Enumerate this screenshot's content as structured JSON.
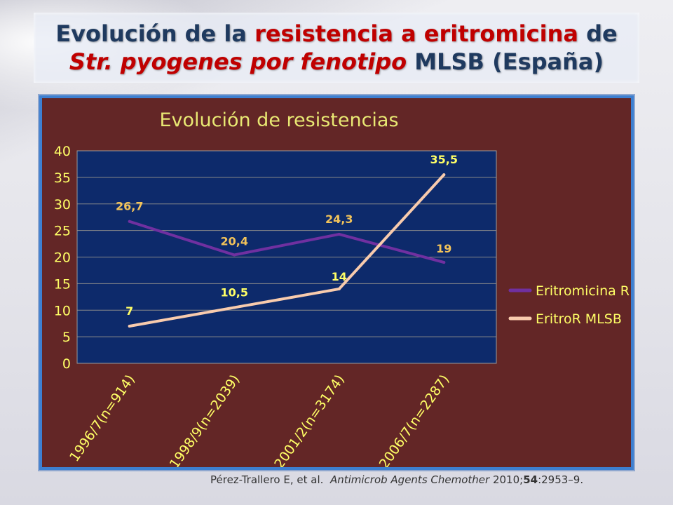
{
  "slide": {
    "title_parts": [
      {
        "text": "Evolución de la ",
        "style": ""
      },
      {
        "text": "resistencia a eritromicina",
        "style": "red"
      },
      {
        "text": " de",
        "style": ""
      }
    ],
    "title_parts2": [
      {
        "text": "Str. pyogenes por fenotipo",
        "style": "red it"
      },
      {
        "text": " MLSB (España)",
        "style": ""
      }
    ],
    "citation_parts": [
      {
        "text": "Pérez-Trallero E, et al.  ",
        "style": ""
      },
      {
        "text": "Antimicrob Agents Chemother",
        "style": "italic"
      },
      {
        "text": " 2010;",
        "style": ""
      },
      {
        "text": "54",
        "style": "bold"
      },
      {
        "text": ":2953–9.",
        "style": ""
      }
    ]
  },
  "chart_data": {
    "type": "line",
    "title": "Evolución de resistencias",
    "categories": [
      "1996/7(n=914)",
      "1998/9(n=2039)",
      "2001/2(n=3174)",
      "2006/7(n=2287)"
    ],
    "ylim": [
      0,
      40
    ],
    "yticks": [
      0,
      5,
      10,
      15,
      20,
      25,
      30,
      35,
      40
    ],
    "series": [
      {
        "name": "Eritromicina R",
        "values": [
          26.7,
          20.4,
          24.3,
          19
        ],
        "labels": [
          "26,7",
          "20,4",
          "24,3",
          "19"
        ],
        "color": "#7030a0"
      },
      {
        "name": "EritroR MLSB",
        "values": [
          7,
          10.5,
          14,
          35.5
        ],
        "labels": [
          "7",
          "10,5",
          "14",
          "35,5"
        ],
        "color": "#f8cbad"
      }
    ],
    "legend_position": "right",
    "grid": true,
    "colors": {
      "background": "#632626",
      "plot_background": "#0d2a6b",
      "title": "#e8e873",
      "axis_text": "#ffff66",
      "label_series1": "#f2c35a",
      "label_series2": "#ffff66"
    }
  }
}
